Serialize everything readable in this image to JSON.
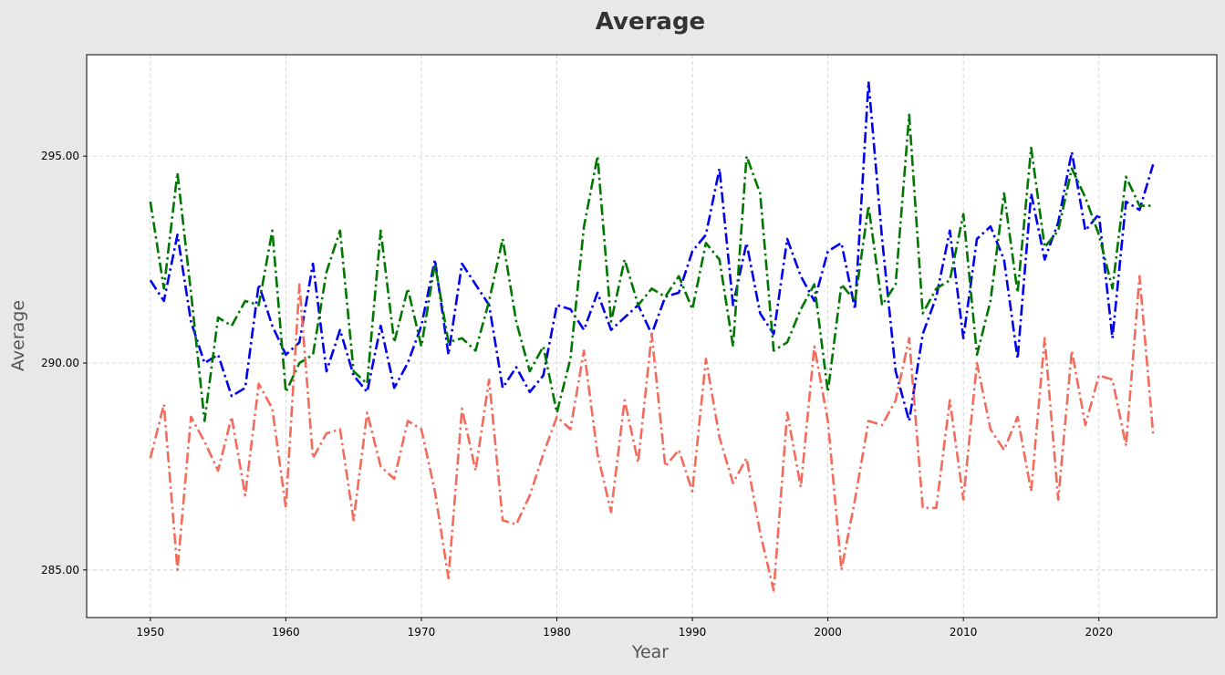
{
  "chart_data": {
    "type": "line",
    "title": "Average",
    "xlabel": "Year",
    "ylabel": "Average",
    "xlim": [
      1945.3,
      2028.7
    ],
    "ylim": [
      283.85,
      297.45
    ],
    "xticks": [
      1950,
      1960,
      1970,
      1980,
      1990,
      2000,
      2010,
      2020
    ],
    "yticks": [
      285.0,
      290.0,
      295.0
    ],
    "ytick_labels": [
      "285.00",
      "290.00",
      "295.00"
    ],
    "grid": true,
    "x": [
      1950,
      1951,
      1952,
      1953,
      1954,
      1955,
      1956,
      1957,
      1958,
      1959,
      1960,
      1961,
      1962,
      1963,
      1964,
      1965,
      1966,
      1967,
      1968,
      1969,
      1970,
      1971,
      1972,
      1973,
      1974,
      1975,
      1976,
      1977,
      1978,
      1979,
      1980,
      1981,
      1982,
      1983,
      1984,
      1985,
      1986,
      1987,
      1988,
      1989,
      1990,
      1991,
      1992,
      1993,
      1994,
      1995,
      1996,
      1997,
      1998,
      1999,
      2000,
      2001,
      2002,
      2003,
      2004,
      2005,
      2006,
      2007,
      2008,
      2009,
      2010,
      2011,
      2012,
      2013,
      2014,
      2015,
      2016,
      2017,
      2018,
      2019,
      2020,
      2021,
      2022,
      2023,
      2024
    ],
    "series": [
      {
        "color": "#0000ee",
        "values": [
          292.0,
          291.5,
          293.1,
          291.0,
          290.0,
          290.2,
          289.2,
          289.4,
          291.9,
          290.9,
          290.2,
          290.5,
          292.4,
          289.8,
          290.8,
          289.7,
          289.3,
          290.9,
          289.4,
          290.0,
          290.9,
          292.5,
          290.2,
          292.4,
          291.9,
          291.4,
          289.4,
          289.9,
          289.3,
          289.7,
          291.4,
          291.3,
          290.8,
          291.7,
          290.8,
          291.1,
          291.4,
          290.7,
          291.6,
          291.7,
          292.7,
          293.1,
          294.7,
          291.4,
          292.9,
          291.2,
          290.7,
          293.0,
          292.1,
          291.5,
          292.7,
          292.9,
          291.3,
          296.8,
          293.0,
          289.8,
          288.6,
          290.7,
          291.6,
          293.2,
          290.6,
          293.0,
          293.3,
          292.5,
          290.1,
          294.1,
          292.5,
          293.4,
          295.1,
          293.2,
          293.6,
          290.6,
          293.9,
          293.7,
          294.8
        ]
      },
      {
        "color": "#007700",
        "values": [
          293.9,
          291.8,
          294.6,
          291.7,
          288.6,
          291.1,
          290.9,
          291.5,
          291.4,
          293.2,
          289.3,
          290.0,
          290.2,
          292.2,
          293.2,
          289.8,
          289.5,
          293.2,
          290.5,
          291.8,
          290.4,
          292.4,
          290.5,
          290.6,
          290.3,
          291.5,
          293.0,
          291.0,
          289.8,
          290.4,
          288.8,
          290.1,
          293.3,
          295.0,
          291.0,
          292.5,
          291.4,
          291.8,
          291.6,
          292.1,
          291.3,
          292.9,
          292.5,
          290.4,
          295.0,
          294.1,
          290.3,
          290.5,
          291.3,
          291.9,
          289.3,
          291.9,
          291.5,
          293.8,
          291.4,
          291.9,
          296.0,
          291.2,
          291.8,
          292.0,
          293.6,
          290.2,
          291.5,
          294.1,
          291.7,
          295.2,
          292.8,
          293.2,
          294.7,
          294.0,
          293.1,
          291.8,
          294.5,
          293.8,
          293.8
        ]
      },
      {
        "color": "#f26b5b",
        "values": [
          287.7,
          289.0,
          285.0,
          288.7,
          288.1,
          287.4,
          288.7,
          286.8,
          289.5,
          288.9,
          286.5,
          291.9,
          287.7,
          288.3,
          288.4,
          286.2,
          288.8,
          287.5,
          287.2,
          288.6,
          288.4,
          286.9,
          284.8,
          288.9,
          287.4,
          289.6,
          286.2,
          286.1,
          286.8,
          287.8,
          288.7,
          288.4,
          290.3,
          287.8,
          286.4,
          289.1,
          287.6,
          290.7,
          287.5,
          287.9,
          286.9,
          290.1,
          288.2,
          287.1,
          287.7,
          285.9,
          284.5,
          288.8,
          287.0,
          290.4,
          288.6,
          285.0,
          286.7,
          288.6,
          288.5,
          289.1,
          290.6,
          286.5,
          286.5,
          289.1,
          286.7,
          290.0,
          288.4,
          287.9,
          288.7,
          286.9,
          290.6,
          286.7,
          290.3,
          288.5,
          289.7,
          289.6,
          288.0,
          292.1,
          288.3
        ]
      }
    ]
  }
}
